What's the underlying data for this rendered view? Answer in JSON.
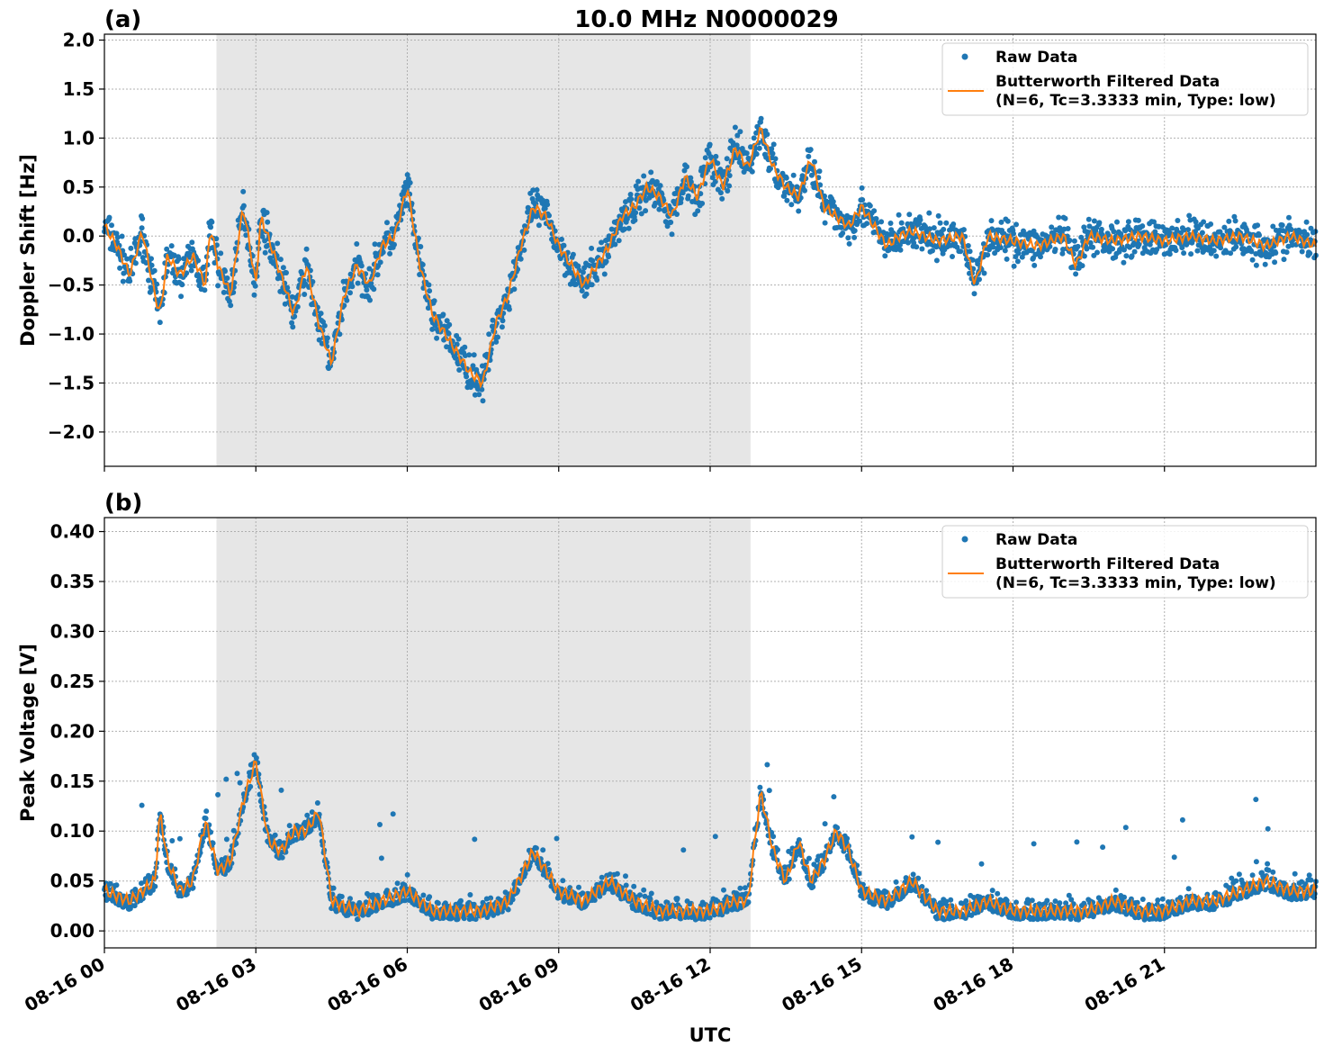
{
  "figure_title": "10.0 MHz N0000029",
  "x_axis": {
    "label": "UTC",
    "tick_labels": [
      "08-16 00",
      "08-16 03",
      "08-16 06",
      "08-16 09",
      "08-16 12",
      "08-16 15",
      "08-16 18",
      "08-16 21"
    ],
    "tick_hours": [
      0,
      3,
      6,
      9,
      12,
      15,
      18,
      21
    ],
    "range_hours": [
      0,
      24
    ]
  },
  "colors": {
    "raw": "#1f77b4",
    "filtered": "#ff7f0e",
    "shade": "#e6e6e6",
    "grid": "#b0b0b0"
  },
  "chart_data": [
    {
      "panel_label": "(a)",
      "type": "scatter",
      "ylabel": "Doppler Shift [Hz]",
      "ylim": [
        -2.35,
        2.06
      ],
      "yticks": [
        2.0,
        1.5,
        1.0,
        0.5,
        0.0,
        -0.5,
        -1.0,
        -1.5,
        -2.0
      ],
      "ytick_labels": [
        "2.0",
        "1.5",
        "1.0",
        "0.5",
        "0.0",
        "−0.5",
        "−1.0",
        "−1.5",
        "−2.0"
      ],
      "grid": true,
      "legend_position": "top-right",
      "shaded_region_hours": [
        2.22,
        12.8
      ],
      "series": [
        {
          "name": "Raw Data",
          "kind": "scatter",
          "x_hours": [
            0,
            0.25,
            0.5,
            0.75,
            1.0,
            1.1,
            1.25,
            1.5,
            1.75,
            2.0,
            2.1,
            2.25,
            2.5,
            2.75,
            2.85,
            3.0,
            3.1,
            3.5,
            3.75,
            4.0,
            4.25,
            4.5,
            4.75,
            5.0,
            5.25,
            5.5,
            5.75,
            6.0,
            6.25,
            6.5,
            6.75,
            7.0,
            7.25,
            7.5,
            7.75,
            8.0,
            8.25,
            8.5,
            8.75,
            9.0,
            9.25,
            9.5,
            9.75,
            10.0,
            10.25,
            10.5,
            10.75,
            11.0,
            11.25,
            11.5,
            11.75,
            12.0,
            12.25,
            12.5,
            12.75,
            13.0,
            13.25,
            13.5,
            13.75,
            14.0,
            14.25,
            14.5,
            14.75,
            15.0,
            15.25,
            15.5,
            15.75,
            16.0,
            16.5,
            17.0,
            17.25,
            17.5,
            18.0,
            18.5,
            19.0,
            19.25,
            19.5,
            20.0,
            20.5,
            21.0,
            21.5,
            22.0,
            22.5,
            23.0,
            23.5,
            24.0
          ],
          "y": [
            0.1,
            -0.1,
            -0.4,
            0.05,
            -0.6,
            -0.8,
            -0.2,
            -0.4,
            -0.2,
            -0.5,
            0.1,
            -0.3,
            -0.6,
            0.3,
            0.0,
            -0.5,
            0.2,
            -0.4,
            -0.8,
            -0.3,
            -0.9,
            -1.3,
            -0.6,
            -0.3,
            -0.5,
            -0.1,
            0.0,
            0.5,
            -0.3,
            -0.8,
            -1.0,
            -1.2,
            -1.4,
            -1.5,
            -0.9,
            -0.6,
            -0.1,
            0.3,
            0.2,
            -0.1,
            -0.3,
            -0.5,
            -0.3,
            -0.1,
            0.2,
            0.3,
            0.5,
            0.4,
            0.2,
            0.6,
            0.4,
            0.8,
            0.5,
            0.9,
            0.7,
            1.1,
            0.7,
            0.5,
            0.4,
            0.8,
            0.3,
            0.2,
            0.1,
            0.3,
            0.1,
            -0.1,
            0.0,
            0.05,
            -0.05,
            0.0,
            -0.5,
            0.0,
            -0.05,
            -0.1,
            0.0,
            -0.3,
            0.0,
            -0.05,
            0.0,
            -0.05,
            0.0,
            -0.05,
            0.0,
            -0.1,
            0.0,
            -0.1
          ]
        },
        {
          "name": "Butterworth Filtered Data\n(N=6, Tc=3.3333 min, Type: low)",
          "kind": "line",
          "x_hours": [
            0,
            0.25,
            0.5,
            0.75,
            1.0,
            1.1,
            1.25,
            1.5,
            1.75,
            2.0,
            2.1,
            2.25,
            2.5,
            2.75,
            2.85,
            3.0,
            3.1,
            3.5,
            3.75,
            4.0,
            4.25,
            4.5,
            4.75,
            5.0,
            5.25,
            5.5,
            5.75,
            6.0,
            6.25,
            6.5,
            6.75,
            7.0,
            7.25,
            7.5,
            7.75,
            8.0,
            8.25,
            8.5,
            8.75,
            9.0,
            9.25,
            9.5,
            9.75,
            10.0,
            10.25,
            10.5,
            10.75,
            11.0,
            11.25,
            11.5,
            11.75,
            12.0,
            12.25,
            12.5,
            12.75,
            13.0,
            13.25,
            13.5,
            13.75,
            14.0,
            14.25,
            14.5,
            14.75,
            15.0,
            15.25,
            15.5,
            15.75,
            16.0,
            16.5,
            17.0,
            17.25,
            17.5,
            18.0,
            18.5,
            19.0,
            19.25,
            19.5,
            20.0,
            20.5,
            21.0,
            21.5,
            22.0,
            22.5,
            23.0,
            23.5,
            24.0
          ],
          "y": [
            0.1,
            -0.1,
            -0.4,
            0.05,
            -0.6,
            -0.8,
            -0.2,
            -0.4,
            -0.2,
            -0.5,
            0.1,
            -0.3,
            -0.6,
            0.3,
            0.0,
            -0.5,
            0.2,
            -0.4,
            -0.8,
            -0.3,
            -0.9,
            -1.3,
            -0.6,
            -0.3,
            -0.5,
            -0.1,
            0.0,
            0.5,
            -0.3,
            -0.8,
            -1.0,
            -1.2,
            -1.4,
            -1.5,
            -0.9,
            -0.6,
            -0.1,
            0.3,
            0.2,
            -0.1,
            -0.3,
            -0.5,
            -0.3,
            -0.1,
            0.2,
            0.3,
            0.5,
            0.4,
            0.2,
            0.6,
            0.4,
            0.8,
            0.5,
            0.9,
            0.7,
            1.1,
            0.7,
            0.5,
            0.4,
            0.8,
            0.3,
            0.2,
            0.1,
            0.3,
            0.1,
            -0.1,
            0.0,
            0.05,
            -0.05,
            0.0,
            -0.5,
            0.0,
            -0.05,
            -0.1,
            0.0,
            -0.3,
            0.0,
            -0.05,
            0.0,
            -0.05,
            0.0,
            -0.05,
            0.0,
            -0.1,
            0.0,
            -0.1
          ]
        }
      ]
    },
    {
      "panel_label": "(b)",
      "type": "scatter",
      "ylabel": "Peak Voltage [V]",
      "ylim": [
        -0.017,
        0.414
      ],
      "yticks": [
        0.4,
        0.35,
        0.3,
        0.25,
        0.2,
        0.15,
        0.1,
        0.05,
        0.0
      ],
      "ytick_labels": [
        "0.40",
        "0.35",
        "0.30",
        "0.25",
        "0.20",
        "0.15",
        "0.10",
        "0.05",
        "0.00"
      ],
      "grid": true,
      "legend_position": "top-right",
      "shaded_region_hours": [
        2.22,
        12.8
      ],
      "series": [
        {
          "name": "Raw Data",
          "kind": "scatter",
          "x_hours": [
            0,
            0.5,
            1.0,
            1.1,
            1.25,
            1.5,
            1.75,
            2.0,
            2.25,
            2.5,
            2.75,
            3.0,
            3.25,
            3.5,
            3.75,
            4.0,
            4.25,
            4.5,
            5.0,
            5.5,
            6.0,
            6.5,
            7.0,
            7.5,
            8.0,
            8.5,
            9.0,
            9.5,
            10.0,
            10.5,
            11.0,
            11.5,
            12.0,
            12.5,
            12.75,
            13.0,
            13.25,
            13.5,
            13.75,
            14.0,
            14.25,
            14.5,
            14.75,
            15.0,
            15.5,
            16.0,
            16.5,
            17.0,
            17.5,
            18.0,
            18.5,
            19.0,
            19.5,
            20.0,
            20.5,
            21.0,
            21.5,
            22.0,
            22.5,
            23.0,
            23.5,
            24.0
          ],
          "y": [
            0.04,
            0.03,
            0.05,
            0.12,
            0.07,
            0.04,
            0.05,
            0.11,
            0.06,
            0.07,
            0.13,
            0.17,
            0.09,
            0.08,
            0.1,
            0.1,
            0.12,
            0.03,
            0.02,
            0.03,
            0.04,
            0.02,
            0.02,
            0.02,
            0.03,
            0.08,
            0.04,
            0.03,
            0.05,
            0.03,
            0.02,
            0.02,
            0.02,
            0.03,
            0.03,
            0.14,
            0.08,
            0.05,
            0.09,
            0.05,
            0.07,
            0.1,
            0.08,
            0.04,
            0.03,
            0.05,
            0.02,
            0.02,
            0.03,
            0.02,
            0.02,
            0.02,
            0.02,
            0.03,
            0.02,
            0.02,
            0.03,
            0.03,
            0.04,
            0.05,
            0.04,
            0.04
          ]
        },
        {
          "name": "Butterworth Filtered Data\n(N=6, Tc=3.3333 min, Type: low)",
          "kind": "line",
          "x_hours": [
            0,
            0.5,
            1.0,
            1.1,
            1.25,
            1.5,
            1.75,
            2.0,
            2.25,
            2.5,
            2.75,
            3.0,
            3.25,
            3.5,
            3.75,
            4.0,
            4.25,
            4.5,
            5.0,
            5.5,
            6.0,
            6.5,
            7.0,
            7.5,
            8.0,
            8.5,
            9.0,
            9.5,
            10.0,
            10.5,
            11.0,
            11.5,
            12.0,
            12.5,
            12.75,
            13.0,
            13.25,
            13.5,
            13.75,
            14.0,
            14.25,
            14.5,
            14.75,
            15.0,
            15.5,
            16.0,
            16.5,
            17.0,
            17.5,
            18.0,
            18.5,
            19.0,
            19.5,
            20.0,
            20.5,
            21.0,
            21.5,
            22.0,
            22.5,
            23.0,
            23.5,
            24.0
          ],
          "y": [
            0.04,
            0.03,
            0.05,
            0.12,
            0.07,
            0.04,
            0.05,
            0.11,
            0.06,
            0.07,
            0.13,
            0.17,
            0.09,
            0.08,
            0.1,
            0.1,
            0.12,
            0.03,
            0.02,
            0.03,
            0.04,
            0.02,
            0.02,
            0.02,
            0.03,
            0.08,
            0.04,
            0.03,
            0.05,
            0.03,
            0.02,
            0.02,
            0.02,
            0.03,
            0.03,
            0.14,
            0.08,
            0.05,
            0.09,
            0.05,
            0.07,
            0.1,
            0.08,
            0.04,
            0.03,
            0.05,
            0.02,
            0.02,
            0.03,
            0.02,
            0.02,
            0.02,
            0.02,
            0.03,
            0.02,
            0.02,
            0.03,
            0.03,
            0.04,
            0.05,
            0.04,
            0.04
          ]
        }
      ]
    }
  ]
}
